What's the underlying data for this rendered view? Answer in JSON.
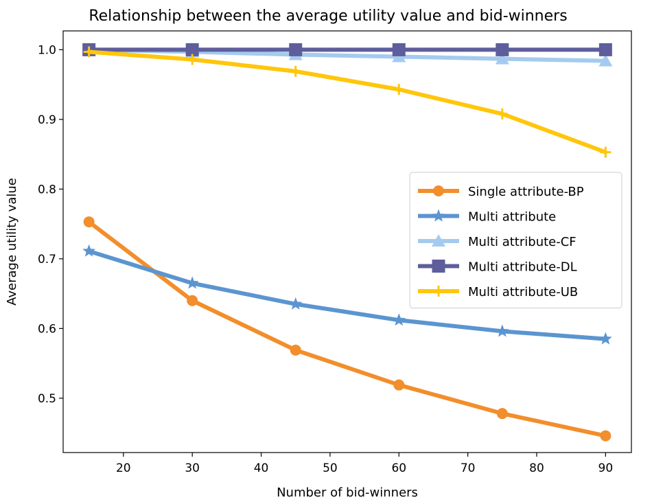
{
  "chart_data": {
    "type": "line",
    "title": "Relationship between the average utility value and bid-winners",
    "xlabel": "Number of bid-winners",
    "ylabel": "Average utility value",
    "x": [
      15,
      30,
      45,
      60,
      75,
      90
    ],
    "xticks": [
      20,
      30,
      40,
      50,
      60,
      70,
      80,
      90
    ],
    "yticks": [
      0.5,
      0.6,
      0.7,
      0.8,
      0.9,
      1.0
    ],
    "ytick_labels": [
      "0.5",
      "0.6",
      "0.7",
      "0.8",
      "0.9",
      "1.0"
    ],
    "xlim": [
      11.25,
      93.75
    ],
    "ylim": [
      0.422,
      1.027
    ],
    "grid": false,
    "legend_position": "center-right",
    "series": [
      {
        "name": "Single attribute-BP",
        "values": [
          0.753,
          0.64,
          0.569,
          0.519,
          0.478,
          0.446
        ],
        "color": "#F28E2B",
        "marker": "circle"
      },
      {
        "name": "Multi attribute",
        "values": [
          0.711,
          0.665,
          0.635,
          0.612,
          0.596,
          0.585
        ],
        "color": "#5B95D0",
        "marker": "star"
      },
      {
        "name": "Multi attribute-CF",
        "values": [
          1.0,
          0.997,
          0.993,
          0.99,
          0.987,
          0.984
        ],
        "color": "#A4CBEF",
        "marker": "triangle"
      },
      {
        "name": "Multi attribute-DL",
        "values": [
          1.0,
          1.0,
          1.0,
          1.0,
          1.0,
          1.0
        ],
        "color": "#5E5E9C",
        "marker": "square"
      },
      {
        "name": "Multi attribute-UB",
        "values": [
          0.997,
          0.986,
          0.969,
          0.943,
          0.908,
          0.853
        ],
        "color": "#FFC60B",
        "marker": "plus"
      }
    ]
  }
}
